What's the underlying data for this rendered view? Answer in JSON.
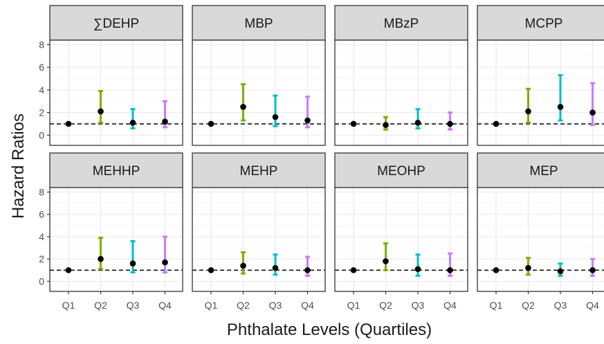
{
  "chart_data": {
    "type": "scatter",
    "layout": "facet grid, 2 rows x 4 columns, point estimates with error bars",
    "xlabel": "Phthalate Levels (Quartiles)",
    "ylabel": "Hazard Ratios",
    "categories": [
      "Q1",
      "Q2",
      "Q3",
      "Q4"
    ],
    "y_ticks": [
      0,
      2,
      4,
      6,
      8
    ],
    "ylim": [
      -0.9,
      8.4
    ],
    "reference_line": 1,
    "grid": true,
    "legend": "none",
    "colors": {
      "Q1": "#F8766D",
      "Q2": "#7CAE00",
      "Q3": "#00BFC4",
      "Q4": "#C77CFF"
    },
    "panels": [
      {
        "name": "∑DEHP",
        "estimate": [
          1,
          2.1,
          1.1,
          1.2
        ],
        "lower": [
          1,
          1.1,
          0.6,
          0.7
        ],
        "upper": [
          1,
          3.9,
          2.3,
          3.0
        ]
      },
      {
        "name": "MBP",
        "estimate": [
          1,
          2.5,
          1.6,
          1.3
        ],
        "lower": [
          1,
          1.3,
          0.8,
          0.7
        ],
        "upper": [
          1,
          4.5,
          3.5,
          3.4
        ]
      },
      {
        "name": "MBzP",
        "estimate": [
          1,
          0.9,
          1.1,
          1.0
        ],
        "lower": [
          1,
          0.5,
          0.6,
          0.5
        ],
        "upper": [
          1,
          1.6,
          2.3,
          2.0
        ]
      },
      {
        "name": "MCPP",
        "estimate": [
          1,
          2.1,
          2.5,
          2.0
        ],
        "lower": [
          1,
          1.1,
          1.3,
          0.9
        ],
        "upper": [
          1,
          4.1,
          5.3,
          4.6
        ]
      },
      {
        "name": "MEHHP",
        "estimate": [
          1,
          2.0,
          1.6,
          1.7
        ],
        "lower": [
          1,
          1.1,
          0.8,
          0.8
        ],
        "upper": [
          1,
          3.9,
          3.6,
          4.0
        ]
      },
      {
        "name": "MEHP",
        "estimate": [
          1,
          1.4,
          1.2,
          1.0
        ],
        "lower": [
          1,
          0.7,
          0.6,
          0.5
        ],
        "upper": [
          1,
          2.6,
          2.4,
          2.2
        ]
      },
      {
        "name": "MEOHP",
        "estimate": [
          1,
          1.8,
          1.1,
          1.0
        ],
        "lower": [
          1,
          1.0,
          0.5,
          0.5
        ],
        "upper": [
          1,
          3.4,
          2.4,
          2.5
        ]
      },
      {
        "name": "MEP",
        "estimate": [
          1,
          1.2,
          0.9,
          1.0
        ],
        "lower": [
          1,
          0.6,
          0.5,
          0.5
        ],
        "upper": [
          1,
          2.1,
          1.6,
          2.0
        ]
      }
    ]
  }
}
